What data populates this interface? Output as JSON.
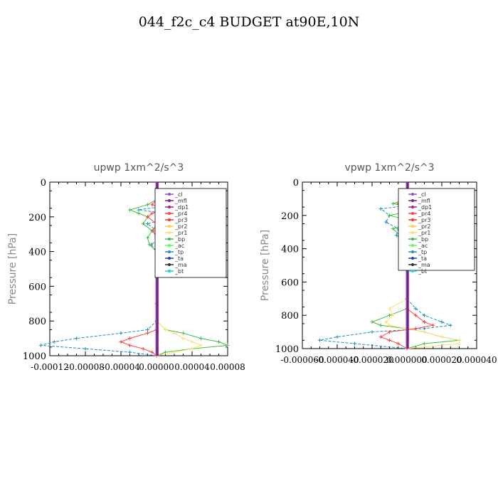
{
  "figure": {
    "title": "044_f2c_c4  BUDGET at90E,10N"
  },
  "legend_entries": [
    {
      "name": "_cl",
      "color": "#9a4fd0"
    },
    {
      "name": "_mfl",
      "color": "#7a1f7a"
    },
    {
      "name": "_dp1",
      "color": "#a02090"
    },
    {
      "name": "_pr4",
      "color": "#ff4040"
    },
    {
      "name": "_pr3",
      "color": "#ff3030"
    },
    {
      "name": "_pr2",
      "color": "#ffd040"
    },
    {
      "name": "_pr1",
      "color": "#ffe070"
    },
    {
      "name": "_bp",
      "color": "#40c040"
    },
    {
      "name": "_ac",
      "color": "#60ff60"
    },
    {
      "name": "_tp",
      "color": "#2090c0"
    },
    {
      "name": "_ta",
      "color": "#2040a0"
    },
    {
      "name": "_ma",
      "color": "#303030"
    },
    {
      "name": "_bt",
      "color": "#20d0e0"
    }
  ],
  "chart_data": [
    {
      "type": "line",
      "title": "upwp   1xm^2/s^3",
      "ylabel": "Pressure [hPa]",
      "xlabel": "",
      "ylim": [
        1000,
        0
      ],
      "xlim": [
        -0.00012,
        8e-05
      ],
      "xticks": [
        "-0.00012",
        "-0.00008",
        "-0.00004",
        "0.00000",
        "0.00004",
        "0.00008"
      ],
      "xtick_values": [
        -0.00012,
        -8e-05,
        -4e-05,
        0,
        4e-05,
        8e-05
      ],
      "yticks": [
        0,
        200,
        400,
        600,
        800,
        1000
      ],
      "legend_position": "top-right",
      "series": [
        {
          "name": "_tp",
          "color": "#2090c0",
          "y": [
            100,
            130,
            160,
            180,
            200,
            240,
            280,
            320,
            360,
            400,
            500,
            700,
            800,
            850,
            870,
            900,
            920,
            940,
            960,
            980,
            1000
          ],
          "values": [
            0,
            2e-05,
            -2e-05,
            1e-05,
            2e-05,
            -1e-05,
            0,
            4e-06,
            -6e-06,
            0,
            0,
            0,
            0,
            -1e-05,
            -4e-05,
            -9e-05,
            -0.000115,
            -0.00013,
            -8e-05,
            -3e-05,
            0
          ]
        },
        {
          "name": "_bp",
          "color": "#40c040",
          "y": [
            100,
            130,
            160,
            180,
            200,
            240,
            280,
            320,
            360,
            400,
            500,
            700,
            800,
            850,
            870,
            900,
            920,
            940,
            960,
            980,
            1000
          ],
          "values": [
            0,
            -1e-05,
            -3e-05,
            -2e-05,
            -1e-05,
            -1.5e-05,
            -5e-06,
            -1e-05,
            -8e-06,
            0,
            0,
            0,
            0,
            1e-05,
            3e-05,
            5e-05,
            7e-05,
            8e-05,
            4e-05,
            1e-05,
            0
          ]
        },
        {
          "name": "_pr1",
          "color": "#ffe070",
          "y": [
            100,
            130,
            160,
            180,
            200,
            240,
            280,
            320,
            360,
            400,
            500,
            700,
            800,
            850,
            870,
            900,
            920,
            940,
            960,
            980,
            1000
          ],
          "values": [
            0,
            1e-05,
            2e-05,
            1.5e-05,
            5e-06,
            1e-05,
            5e-06,
            0,
            0,
            0,
            0,
            0,
            0,
            1e-05,
            2e-05,
            3e-05,
            4e-05,
            5e-05,
            4e-05,
            2e-05,
            0
          ]
        },
        {
          "name": "_pr4",
          "color": "#ff4040",
          "y": [
            100,
            130,
            160,
            180,
            200,
            240,
            280,
            320,
            360,
            400,
            500,
            700,
            800,
            850,
            870,
            900,
            920,
            940,
            960,
            980,
            1000
          ],
          "values": [
            0,
            -5e-06,
            1e-05,
            -5e-06,
            -1e-05,
            0,
            -4e-06,
            0,
            0,
            0,
            0,
            0,
            0,
            0,
            -1e-05,
            -3e-05,
            -4e-05,
            -3e-05,
            -1.5e-05,
            -5e-06,
            0
          ]
        },
        {
          "name": "_cl",
          "color": "#9a4fd0",
          "y": [
            0,
            1000
          ],
          "values": [
            0,
            0
          ]
        },
        {
          "name": "_mfl",
          "color": "#7a1f7a",
          "y": [
            0,
            1000
          ],
          "values": [
            1e-06,
            1e-06
          ]
        }
      ]
    },
    {
      "type": "line",
      "title": "vpwp   1xm^2/s^3",
      "ylabel": "Pressure [hPa]",
      "xlabel": "",
      "ylim": [
        1000,
        0
      ],
      "xlim": [
        -6e-05,
        4e-05
      ],
      "xticks": [
        "-0.000060",
        "-0.000040",
        "-0.000020",
        "0.000000",
        "0.000020",
        "0.000040"
      ],
      "xtick_values": [
        -6e-05,
        -4e-05,
        -2e-05,
        0,
        2e-05,
        4e-05
      ],
      "yticks": [
        0,
        200,
        400,
        600,
        800,
        1000
      ],
      "legend_position": "top-right",
      "series": [
        {
          "name": "_tp",
          "color": "#2090c0",
          "y": [
            100,
            130,
            160,
            200,
            240,
            280,
            320,
            360,
            400,
            500,
            700,
            760,
            800,
            840,
            860,
            880,
            900,
            930,
            950,
            970,
            1000
          ],
          "values": [
            0,
            1e-05,
            -1.5e-05,
            -1e-05,
            -1.2e-05,
            -5e-06,
            -6e-06,
            0,
            0,
            0,
            0,
            5e-06,
            1e-05,
            2e-05,
            2.5e-05,
            1e-05,
            -2e-05,
            -4e-05,
            -5e-05,
            -3e-05,
            0
          ]
        },
        {
          "name": "_bp",
          "color": "#40c040",
          "y": [
            100,
            130,
            160,
            200,
            240,
            280,
            320,
            360,
            400,
            500,
            700,
            760,
            800,
            840,
            860,
            880,
            900,
            930,
            950,
            970,
            1000
          ],
          "values": [
            0,
            -8e-06,
            1e-05,
            -1e-05,
            5e-06,
            -8e-06,
            -4e-06,
            0,
            0,
            0,
            0,
            0,
            -1e-05,
            -2e-05,
            -1.5e-05,
            0,
            1e-05,
            2e-05,
            3e-05,
            1e-05,
            0
          ]
        },
        {
          "name": "_pr1",
          "color": "#ffe070",
          "y": [
            100,
            130,
            160,
            200,
            240,
            280,
            320,
            360,
            400,
            500,
            700,
            760,
            800,
            840,
            860,
            880,
            900,
            930,
            950,
            970,
            1000
          ],
          "values": [
            0,
            8e-06,
            -5e-06,
            1.2e-05,
            1e-05,
            4e-06,
            0,
            0,
            0,
            0,
            0,
            -1e-05,
            -8e-06,
            -1.2e-05,
            -1e-05,
            0,
            1e-05,
            2e-05,
            3e-05,
            3e-05,
            0
          ]
        },
        {
          "name": "_pr4",
          "color": "#ff4040",
          "y": [
            100,
            130,
            160,
            200,
            240,
            280,
            320,
            360,
            400,
            500,
            700,
            760,
            800,
            840,
            860,
            880,
            900,
            930,
            950,
            970,
            1000
          ],
          "values": [
            0,
            -5e-06,
            8e-06,
            5e-06,
            -4e-06,
            0,
            0,
            0,
            0,
            0,
            0,
            0,
            5e-06,
            1e-05,
            1.5e-05,
            5e-06,
            -1e-05,
            -1.5e-05,
            -1e-05,
            -5e-06,
            0
          ]
        },
        {
          "name": "_cl",
          "color": "#9a4fd0",
          "y": [
            0,
            1000
          ],
          "values": [
            0,
            0
          ]
        },
        {
          "name": "_mfl",
          "color": "#7a1f7a",
          "y": [
            0,
            1000
          ],
          "values": [
            5e-07,
            5e-07
          ]
        }
      ]
    }
  ]
}
